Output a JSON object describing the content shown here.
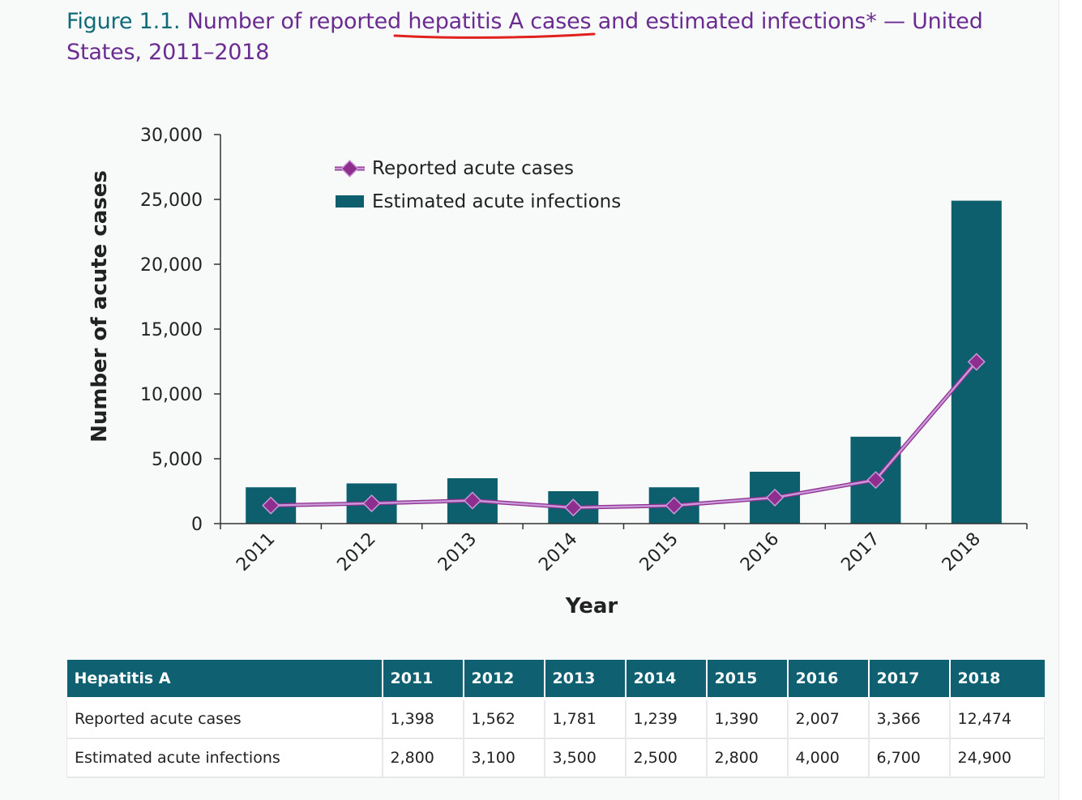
{
  "title": {
    "figure_label": "Figure 1.1.",
    "text": "Number of reported hepatitis A cases and estimated infections* — United States, 2011–2018"
  },
  "annotation": {
    "underline_color": "#e0211d"
  },
  "colors": {
    "bar": "#0d5f6e",
    "line": "#c997d8",
    "marker": "#8e2f8f",
    "title_purple": "#6b2c91",
    "title_teal": "#0f6b78"
  },
  "chart_data": {
    "type": "bar",
    "categories": [
      "2011",
      "2012",
      "2013",
      "2014",
      "2015",
      "2016",
      "2017",
      "2018"
    ],
    "series": [
      {
        "name": "Estimated acute infections",
        "type": "bar",
        "values": [
          2800,
          3100,
          3500,
          2500,
          2800,
          4000,
          6700,
          24900
        ]
      },
      {
        "name": "Reported acute cases",
        "type": "line",
        "values": [
          1398,
          1562,
          1781,
          1239,
          1390,
          2007,
          3366,
          12474
        ]
      }
    ],
    "xlabel": "Year",
    "ylabel": "Number of acute cases",
    "ylim": [
      0,
      30000
    ],
    "yticks": [
      0,
      5000,
      10000,
      15000,
      20000,
      25000,
      30000
    ],
    "ytick_labels": [
      "0",
      "5,000",
      "10,000",
      "15,000",
      "20,000",
      "25,000",
      "30,000"
    ],
    "legend": [
      "Reported acute cases",
      "Estimated acute infections"
    ],
    "legend_position": "top-left",
    "grid": false
  },
  "table": {
    "header": [
      "Hepatitis A",
      "2011",
      "2012",
      "2013",
      "2014",
      "2015",
      "2016",
      "2017",
      "2018"
    ],
    "rows": [
      [
        "Reported acute cases",
        "1,398",
        "1,562",
        "1,781",
        "1,239",
        "1,390",
        "2,007",
        "3,366",
        "12,474"
      ],
      [
        "Estimated acute infections",
        "2,800",
        "3,100",
        "3,500",
        "2,500",
        "2,800",
        "4,000",
        "6,700",
        "24,900"
      ]
    ]
  }
}
